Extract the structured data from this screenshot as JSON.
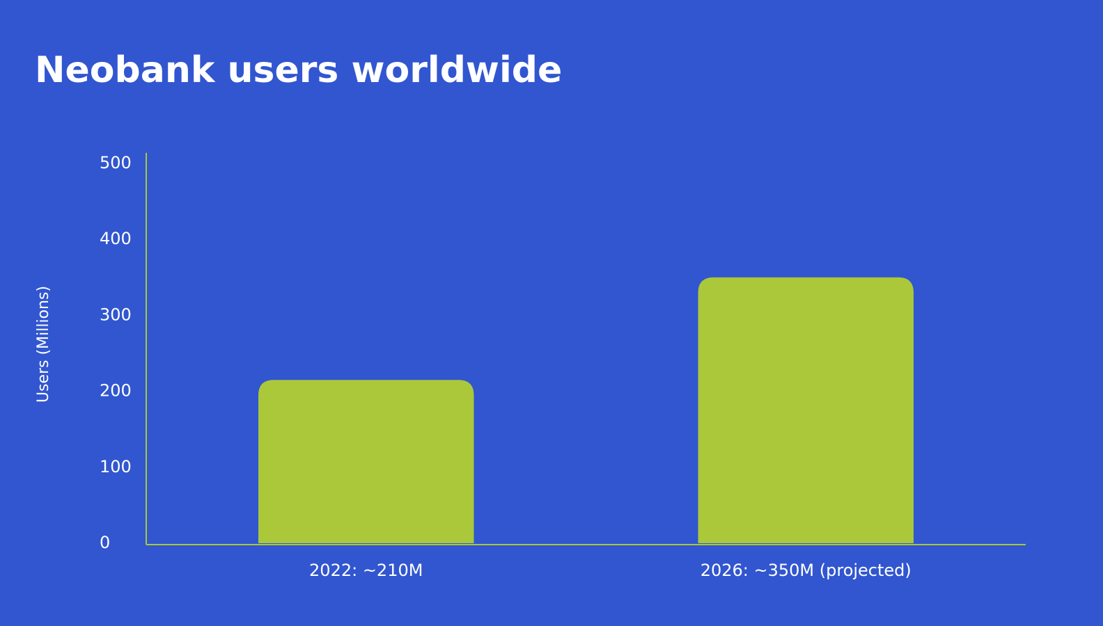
{
  "chart_data": {
    "type": "bar",
    "title": "Neobank users worldwide",
    "y_label": "Users (Millions)",
    "categories": [
      "2022: ~210M",
      "2026: ~350M (projected)"
    ],
    "values": [
      215,
      350
    ],
    "color": "#abc83a",
    "ylim": [
      0,
      514
    ],
    "yticks": [
      0,
      100,
      200,
      300,
      400,
      500
    ],
    "grid": false
  }
}
